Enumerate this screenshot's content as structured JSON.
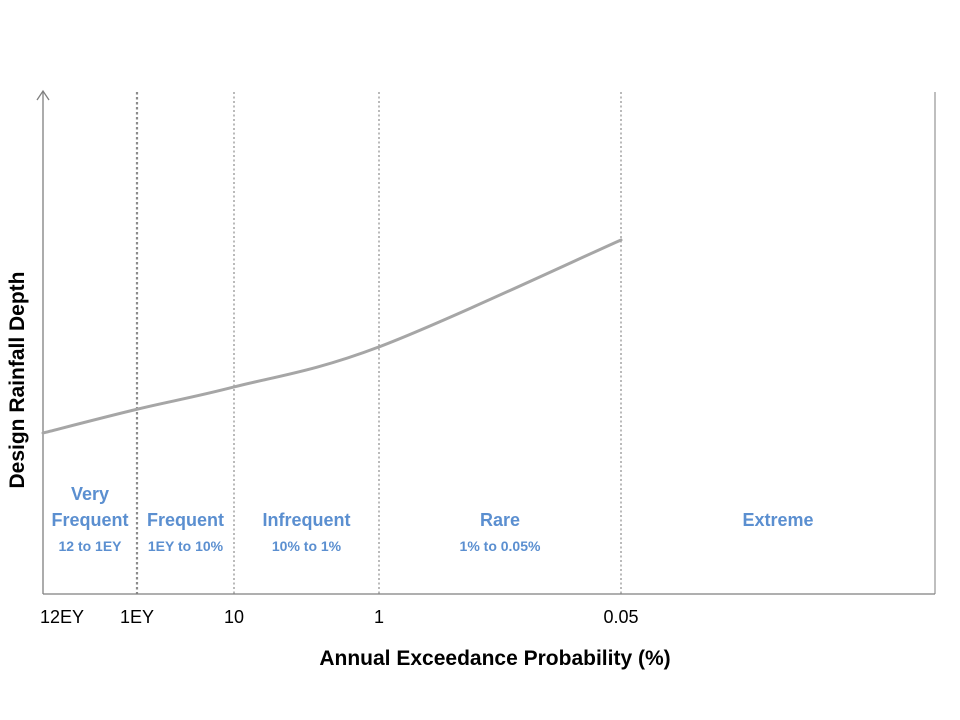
{
  "chart_data": {
    "type": "line",
    "title": "",
    "xlabel": "Annual Exceedance Probability (%)",
    "ylabel": "Design Rainfall Depth",
    "x_ticks": [
      "12EY",
      "1EY",
      "10",
      "1",
      "0.05"
    ],
    "series": [
      {
        "x": [
          "12EY",
          "1EY",
          "10",
          "1",
          "0.05"
        ],
        "values": [
          1.0,
          1.16,
          1.31,
          1.58,
          2.3
        ]
      }
    ],
    "zones": [
      {
        "name_lines": [
          "Very",
          "Frequent"
        ],
        "range": "12 to 1EY"
      },
      {
        "name_lines": [
          "Frequent"
        ],
        "range": "1EY to 10%"
      },
      {
        "name_lines": [
          "Infrequent"
        ],
        "range": "10% to 1%"
      },
      {
        "name_lines": [
          "Rare"
        ],
        "range": "1% to 0.05%"
      },
      {
        "name_lines": [
          "Extreme"
        ],
        "range": ""
      }
    ],
    "colors": {
      "line": "#a6a6a6",
      "zone_text": "#5b8fd0",
      "axis": "#7f7f7f",
      "divider": "#8c8c8c"
    },
    "grid": false,
    "legend": "none"
  }
}
